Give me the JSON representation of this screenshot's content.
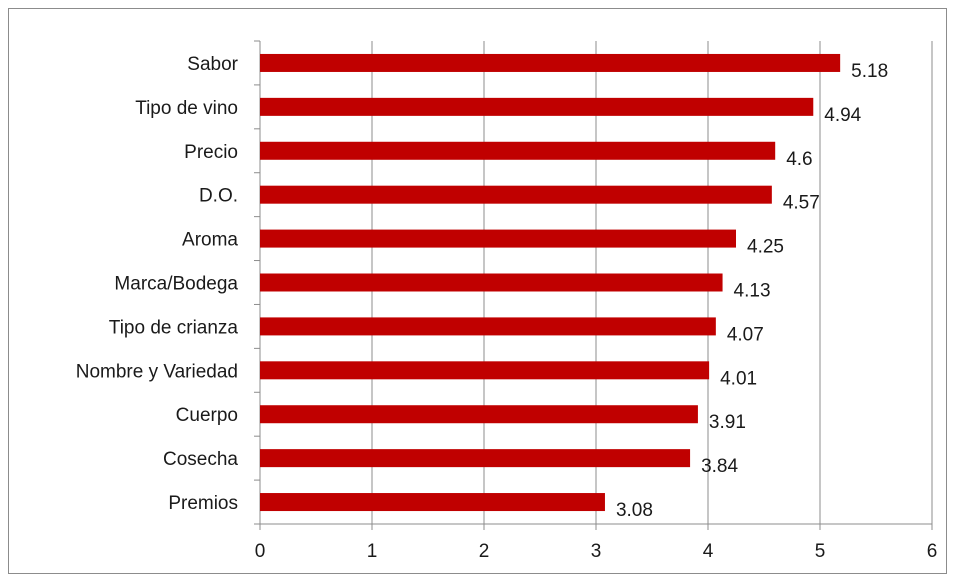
{
  "chart_data": {
    "type": "bar",
    "orientation": "horizontal",
    "categories": [
      "Sabor",
      "Tipo de vino",
      "Precio",
      "D.O.",
      "Aroma",
      "Marca/Bodega",
      "Tipo de crianza",
      "Nombre y Variedad",
      "Cuerpo",
      "Cosecha",
      "Premios"
    ],
    "values": [
      5.18,
      4.94,
      4.6,
      4.57,
      4.25,
      4.13,
      4.07,
      4.01,
      3.91,
      3.84,
      3.08
    ],
    "value_labels": [
      "5.18",
      "4.94",
      "4.6",
      "4.57",
      "4.25",
      "4.13",
      "4.07",
      "4.01",
      "3.91",
      "3.84",
      "3.08"
    ],
    "x_ticks": [
      "0",
      "1",
      "2",
      "3",
      "4",
      "5",
      "6"
    ],
    "xlim": [
      0,
      6
    ],
    "title": "",
    "xlabel": "",
    "ylabel": "",
    "bar_color": "#c00000",
    "grid": "vertical",
    "legend": "none"
  }
}
